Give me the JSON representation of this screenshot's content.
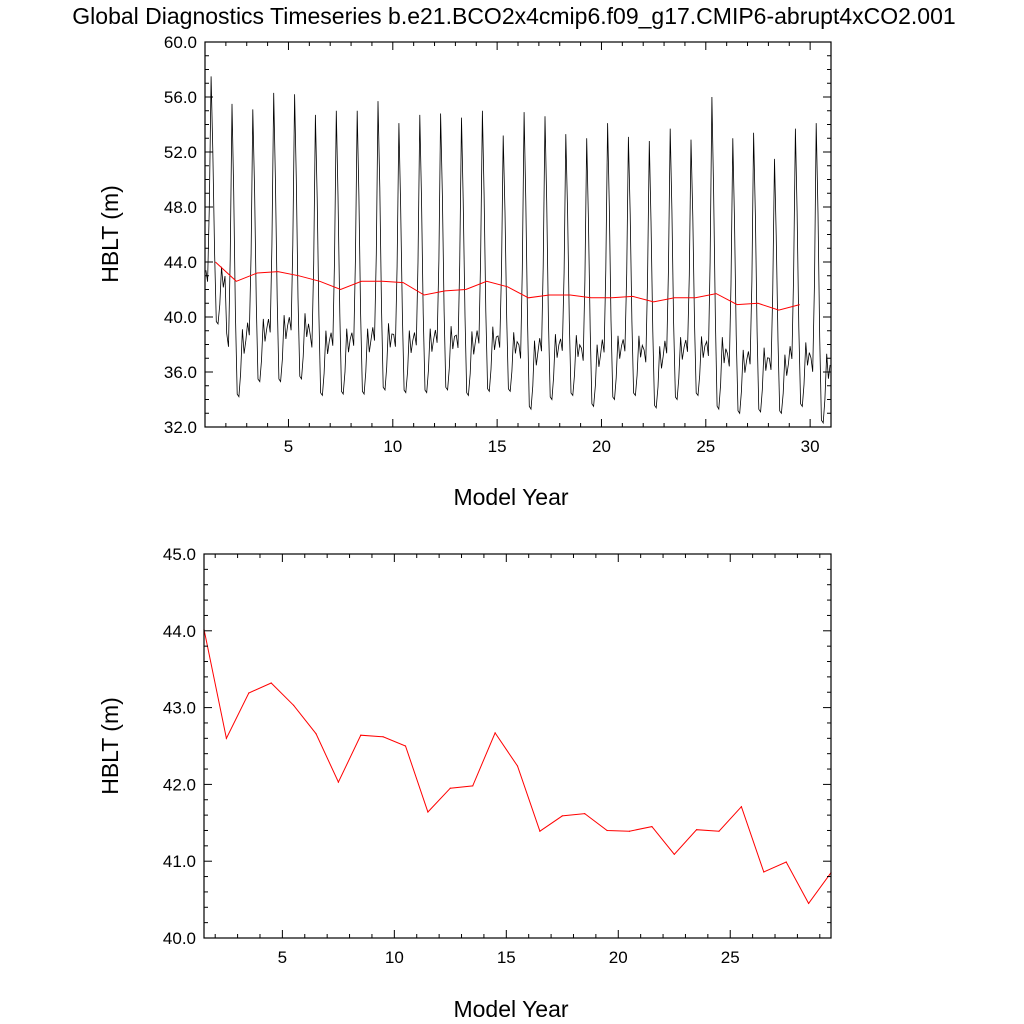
{
  "title": "Global Diagnostics Timeseries b.e21.BCO2x4cmip6.f09_g17.CMIP6-abrupt4xCO2.001",
  "colors": {
    "monthly_line": "#000000",
    "annual_line": "#ff0000",
    "axes": "#000000"
  },
  "chart_data": [
    {
      "type": "line",
      "xlabel": "Model Year",
      "ylabel": "HBLT (m)",
      "xlim": [
        1.0,
        31.0
      ],
      "ylim": [
        32.0,
        60.0
      ],
      "xticks": [
        5,
        10,
        15,
        20,
        25,
        30
      ],
      "yticks": [
        32.0,
        36.0,
        40.0,
        44.0,
        48.0,
        52.0,
        56.0,
        60.0
      ],
      "monthly_cycle": {
        "shape": [
          40.5,
          39.5,
          46.0,
          57.5,
          51.0,
          42.0,
          36.0,
          35.8,
          37.5,
          40.8,
          39.0,
          40.0
        ],
        "annual_max": [
          57.5,
          55.5,
          55.1,
          56.3,
          56.2,
          54.7,
          55.0,
          55.0,
          55.7,
          54.1,
          54.7,
          54.8,
          54.5,
          55.0,
          53.2,
          54.9,
          54.6,
          53.3,
          53.0,
          54.1,
          53.1,
          52.8,
          53.7,
          52.9,
          56.0,
          53.0,
          53.4,
          51.5,
          53.7,
          54.1
        ],
        "annual_min": [
          39.5,
          34.2,
          35.3,
          35.3,
          35.5,
          34.3,
          34.4,
          34.4,
          34.7,
          34.5,
          34.5,
          34.7,
          34.3,
          34.6,
          34.6,
          33.3,
          34.0,
          34.3,
          33.5,
          34.0,
          34.3,
          33.4,
          34.0,
          34.3,
          33.3,
          33.0,
          33.1,
          33.0,
          33.5,
          32.3
        ]
      },
      "series": [
        {
          "values": [
            44.0,
            42.6,
            43.2,
            43.3,
            43.0,
            42.6,
            42.0,
            42.6,
            42.6,
            42.5,
            41.6,
            41.9,
            42.0,
            42.6,
            42.2,
            41.4,
            41.6,
            41.6,
            41.4,
            41.4,
            41.5,
            41.1,
            41.4,
            41.4,
            41.7,
            40.9,
            41.0,
            40.5,
            40.9
          ],
          "x": [
            1.5,
            2.5,
            3.5,
            4.5,
            5.5,
            6.5,
            7.5,
            8.5,
            9.5,
            10.5,
            11.5,
            12.5,
            13.5,
            14.5,
            15.5,
            16.5,
            17.5,
            18.5,
            19.5,
            20.5,
            21.5,
            22.5,
            23.5,
            24.5,
            25.5,
            26.5,
            27.5,
            28.5,
            29.5
          ]
        }
      ]
    },
    {
      "type": "line",
      "xlabel": "Model Year",
      "ylabel": "HBLT (m)",
      "xlim": [
        1.5,
        29.5
      ],
      "ylim": [
        40.0,
        45.0
      ],
      "xticks": [
        5,
        10,
        15,
        20,
        25
      ],
      "yticks": [
        40.0,
        41.0,
        42.0,
        43.0,
        44.0,
        45.0
      ],
      "series": [
        {
          "x": [
            1.5,
            2.5,
            3.5,
            4.5,
            5.5,
            6.5,
            7.5,
            8.5,
            9.5,
            10.5,
            11.5,
            12.5,
            13.5,
            14.5,
            15.5,
            16.5,
            17.5,
            18.5,
            19.5,
            20.5,
            21.5,
            22.5,
            23.5,
            24.5,
            25.5,
            26.5,
            27.5,
            28.5,
            29.5
          ],
          "values": [
            44.02,
            42.6,
            43.19,
            43.32,
            43.03,
            42.66,
            42.03,
            42.64,
            42.62,
            42.5,
            41.64,
            41.95,
            41.98,
            42.67,
            42.24,
            41.39,
            41.59,
            41.62,
            41.4,
            41.39,
            41.45,
            41.09,
            41.41,
            41.39,
            41.71,
            40.86,
            40.99,
            40.45,
            40.85
          ]
        }
      ]
    }
  ]
}
